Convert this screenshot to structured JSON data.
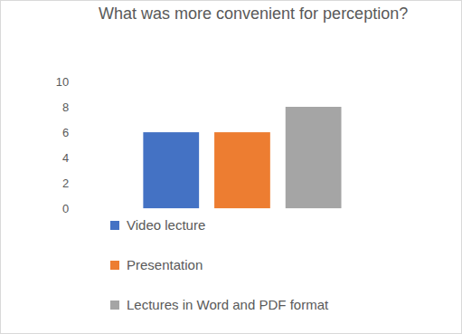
{
  "chart_data": {
    "type": "bar",
    "title": "What was more convenient for perception?",
    "categories": [
      "Video lecture",
      "Presentation",
      "Lectures in Word and PDF format"
    ],
    "values": [
      6,
      6,
      8
    ],
    "colors": [
      "#4472c4",
      "#ed7d31",
      "#a5a5a5"
    ],
    "ylim": [
      0,
      10
    ],
    "yticks": [
      0,
      2,
      4,
      6,
      8,
      10
    ],
    "grid": false,
    "legend": "bottom",
    "tick_labels": "y"
  }
}
